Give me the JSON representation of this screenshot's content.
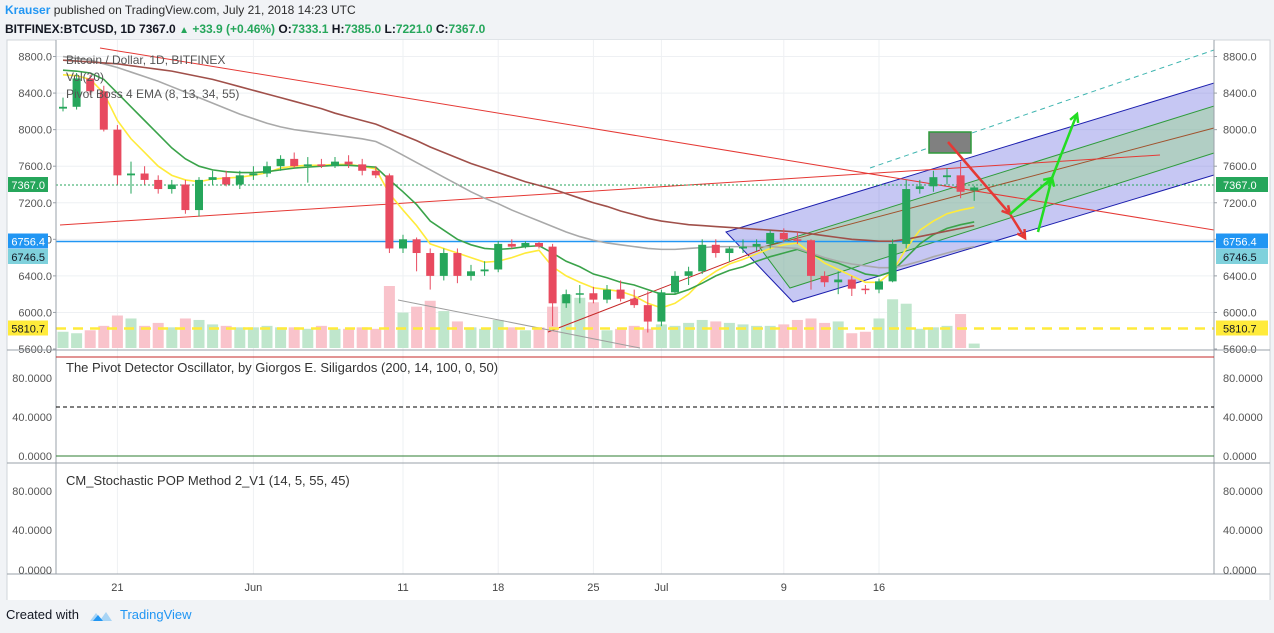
{
  "header": {
    "author": "Krauser",
    "published": "published on TradingView.com, July 21, 2018 14:23 UTC",
    "symbol": "BITFINEX:BTCUSD, 1D",
    "last": "7367.0",
    "change": "+33.9 (+0.46%)",
    "o_label": "O:",
    "o_val": "7333.1",
    "h_label": "H:",
    "h_val": "7385.0",
    "l_label": "L:",
    "l_val": "7221.0",
    "c_label": "C:",
    "c_val": "7367.0"
  },
  "footer": {
    "created_with": "Created with",
    "brand": "TradingView"
  },
  "colors": {
    "up": "#26a65b",
    "down": "#e84a5f",
    "price_line": "#2196f3",
    "yellow": "#ffeb3b"
  },
  "chart_data": [
    {
      "type": "candlestick",
      "title": "Bitcoin / Dollar, 1D, BITFINEX",
      "legend": [
        "Vol(20)",
        "Pivot Boss 4 EMA (8, 13, 34, 55)"
      ],
      "ylim": [
        5600,
        8800
      ],
      "yticks": [
        5600,
        6000,
        6400,
        6800,
        7200,
        7600,
        8000,
        8400,
        8800
      ],
      "ytick_labels": [
        "5600.0",
        "6000.0",
        "6400.0",
        "6800.0",
        "7200.0",
        "7600.0",
        "8000.0",
        "8400.0",
        "8800.0"
      ],
      "xticks": [
        {
          "i": 4,
          "label": "21"
        },
        {
          "i": 14,
          "label": "Jun"
        },
        {
          "i": 25,
          "label": "11"
        },
        {
          "i": 32,
          "label": "18"
        },
        {
          "i": 39,
          "label": "25"
        },
        {
          "i": 44,
          "label": "Jul"
        },
        {
          "i": 53,
          "label": "9"
        },
        {
          "i": 60,
          "label": "16"
        }
      ],
      "price_labels": [
        {
          "value": 7367.0,
          "text": "7367.0",
          "color": "#26a65b"
        },
        {
          "value": 6756.4,
          "text": "6756.4",
          "color": "#2196f3"
        },
        {
          "value": 6746.5,
          "text": "6746.5",
          "color": "#7fd1dc"
        },
        {
          "value": 5810.7,
          "text": "5810.7",
          "color": "#ffeb3b"
        }
      ],
      "candles": [
        [
          8230,
          8350,
          8200,
          8250
        ],
        [
          8250,
          8620,
          8220,
          8560
        ],
        [
          8560,
          8600,
          8380,
          8420
        ],
        [
          8420,
          8480,
          7980,
          8000
        ],
        [
          8000,
          8050,
          7400,
          7500
        ],
        [
          7500,
          7650,
          7300,
          7520
        ],
        [
          7520,
          7600,
          7400,
          7450
        ],
        [
          7450,
          7500,
          7300,
          7350
        ],
        [
          7350,
          7450,
          7300,
          7400
        ],
        [
          7400,
          7450,
          7080,
          7120
        ],
        [
          7120,
          7480,
          7050,
          7450
        ],
        [
          7450,
          7550,
          7400,
          7480
        ],
        [
          7480,
          7550,
          7380,
          7400
        ],
        [
          7400,
          7550,
          7350,
          7500
        ],
        [
          7500,
          7600,
          7450,
          7520
        ],
        [
          7520,
          7650,
          7480,
          7600
        ],
        [
          7600,
          7720,
          7550,
          7680
        ],
        [
          7680,
          7750,
          7580,
          7600
        ],
        [
          7600,
          7700,
          7420,
          7620
        ],
        [
          7620,
          7680,
          7580,
          7600
        ],
        [
          7600,
          7700,
          7580,
          7650
        ],
        [
          7650,
          7720,
          7580,
          7620
        ],
        [
          7620,
          7680,
          7500,
          7550
        ],
        [
          7550,
          7600,
          7470,
          7500
        ],
        [
          7500,
          7520,
          6650,
          6700
        ],
        [
          6700,
          6850,
          6650,
          6800
        ],
        [
          6800,
          6820,
          6450,
          6650
        ],
        [
          6650,
          6700,
          6250,
          6400
        ],
        [
          6400,
          6700,
          6350,
          6650
        ],
        [
          6650,
          6700,
          6320,
          6400
        ],
        [
          6400,
          6520,
          6350,
          6450
        ],
        [
          6450,
          6560,
          6400,
          6470
        ],
        [
          6470,
          6780,
          6440,
          6750
        ],
        [
          6750,
          6800,
          6700,
          6720
        ],
        [
          6720,
          6780,
          6700,
          6760
        ],
        [
          6760,
          6770,
          6700,
          6720
        ],
        [
          6720,
          6750,
          5850,
          6100
        ],
        [
          6100,
          6250,
          6050,
          6200
        ],
        [
          6200,
          6300,
          6100,
          6210
        ],
        [
          6210,
          6280,
          6100,
          6140
        ],
        [
          6140,
          6300,
          6100,
          6250
        ],
        [
          6250,
          6350,
          6120,
          6150
        ],
        [
          6150,
          6250,
          6050,
          6080
        ],
        [
          6080,
          6230,
          5780,
          5900
        ],
        [
          5900,
          6250,
          5850,
          6220
        ],
        [
          6220,
          6450,
          6200,
          6400
        ],
        [
          6400,
          6500,
          6300,
          6450
        ],
        [
          6450,
          6800,
          6420,
          6740
        ],
        [
          6740,
          6800,
          6600,
          6650
        ],
        [
          6650,
          6720,
          6550,
          6700
        ],
        [
          6700,
          6800,
          6650,
          6720
        ],
        [
          6720,
          6800,
          6670,
          6750
        ],
        [
          6750,
          6900,
          6700,
          6870
        ],
        [
          6870,
          6920,
          6770,
          6800
        ],
        [
          6800,
          6880,
          6750,
          6790
        ],
        [
          6790,
          6800,
          6250,
          6400
        ],
        [
          6400,
          6450,
          6280,
          6330
        ],
        [
          6330,
          6450,
          6200,
          6360
        ],
        [
          6360,
          6400,
          6180,
          6260
        ],
        [
          6260,
          6300,
          6200,
          6250
        ],
        [
          6250,
          6370,
          6210,
          6340
        ],
        [
          6340,
          6800,
          6330,
          6750
        ],
        [
          6750,
          7450,
          6700,
          7350
        ],
        [
          7350,
          7450,
          7300,
          7380
        ],
        [
          7380,
          7550,
          7320,
          7480
        ],
        [
          7480,
          7580,
          7400,
          7500
        ],
        [
          7500,
          7650,
          7250,
          7320
        ],
        [
          7333,
          7385,
          7221,
          7367
        ]
      ],
      "volumes": [
        11,
        10,
        12,
        15,
        22,
        20,
        15,
        17,
        14,
        20,
        19,
        16,
        15,
        14,
        14,
        15,
        14,
        14,
        13,
        15,
        13,
        13,
        14,
        13,
        42,
        24,
        28,
        32,
        25,
        18,
        14,
        13,
        19,
        14,
        12,
        14,
        28,
        36,
        34,
        31,
        12,
        13,
        15,
        13,
        16,
        15,
        17,
        19,
        18,
        17,
        16,
        15,
        15,
        16,
        19,
        20,
        17,
        18,
        10,
        11,
        20,
        33,
        30,
        13,
        14,
        15,
        23,
        3
      ],
      "ema": {
        "ema8": [
          8600,
          8590,
          8550,
          8400,
          8100,
          7900,
          7750,
          7600,
          7500,
          7450,
          7430,
          7460,
          7470,
          7480,
          7500,
          7530,
          7580,
          7600,
          7610,
          7610,
          7620,
          7620,
          7600,
          7570,
          7300,
          7120,
          6950,
          6750,
          6700,
          6650,
          6600,
          6550,
          6560,
          6600,
          6650,
          6680,
          6500,
          6400,
          6330,
          6270,
          6250,
          6230,
          6180,
          6100,
          6050,
          6100,
          6200,
          6350,
          6450,
          6530,
          6580,
          6640,
          6700,
          6740,
          6760,
          6650,
          6540,
          6470,
          6400,
          6330,
          6330,
          6450,
          6700,
          6900,
          7000,
          7080,
          7120,
          7150
        ],
        "ema13": [
          8650,
          8640,
          8620,
          8550,
          8400,
          8250,
          8100,
          7950,
          7800,
          7680,
          7600,
          7560,
          7540,
          7530,
          7530,
          7540,
          7560,
          7580,
          7590,
          7600,
          7610,
          7610,
          7600,
          7590,
          7450,
          7320,
          7180,
          7000,
          6900,
          6800,
          6740,
          6700,
          6690,
          6700,
          6720,
          6730,
          6650,
          6560,
          6500,
          6420,
          6380,
          6330,
          6300,
          6250,
          6200,
          6200,
          6250,
          6320,
          6400,
          6460,
          6500,
          6560,
          6610,
          6650,
          6690,
          6640,
          6580,
          6540,
          6480,
          6420,
          6400,
          6450,
          6600,
          6750,
          6850,
          6920,
          6960,
          6990
        ],
        "ema34": [
          8800,
          8780,
          8760,
          8720,
          8680,
          8630,
          8580,
          8530,
          8470,
          8410,
          8350,
          8290,
          8230,
          8170,
          8120,
          8070,
          8030,
          8000,
          7980,
          7960,
          7940,
          7920,
          7900,
          7870,
          7800,
          7720,
          7640,
          7560,
          7480,
          7400,
          7320,
          7250,
          7190,
          7120,
          7060,
          7000,
          6940,
          6880,
          6830,
          6790,
          6760,
          6740,
          6720,
          6700,
          6690,
          6690,
          6700,
          6710,
          6720,
          6720,
          6720,
          6720,
          6720,
          6710,
          6700,
          6650,
          6600,
          6560,
          6530,
          6510,
          6490,
          6490,
          6520,
          6560,
          6610,
          6650,
          6690,
          6720
        ],
        "ema55": [
          8760,
          8750,
          8740,
          8730,
          8720,
          8700,
          8680,
          8660,
          8640,
          8610,
          8580,
          8550,
          8510,
          8470,
          8430,
          8390,
          8350,
          8310,
          8270,
          8230,
          8180,
          8140,
          8100,
          8060,
          8000,
          7940,
          7880,
          7810,
          7750,
          7690,
          7630,
          7580,
          7530,
          7480,
          7430,
          7390,
          7350,
          7300,
          7250,
          7200,
          7160,
          7110,
          7070,
          7030,
          7000,
          6980,
          6960,
          6950,
          6940,
          6930,
          6920,
          6910,
          6900,
          6890,
          6880,
          6860,
          6840,
          6820,
          6800,
          6790,
          6780,
          6780,
          6800,
          6830,
          6860,
          6890,
          6920,
          6950
        ]
      }
    },
    {
      "type": "line",
      "title": "The Pivot Detector Oscillator, by Giorgos E. Siligardos (200, 14, 100, 0, 50)",
      "ylim": [
        0,
        100
      ],
      "ytick_labels": [
        "0.0000",
        "40.0000",
        "80.0000"
      ],
      "levels": [
        100,
        50,
        0
      ]
    },
    {
      "type": "line",
      "title": "CM_Stochastic POP Method 2_V1 (14, 5, 55, 45)",
      "ylim": [
        0,
        100
      ],
      "ytick_labels": [
        "0.0000",
        "40.0000",
        "80.0000"
      ]
    }
  ]
}
